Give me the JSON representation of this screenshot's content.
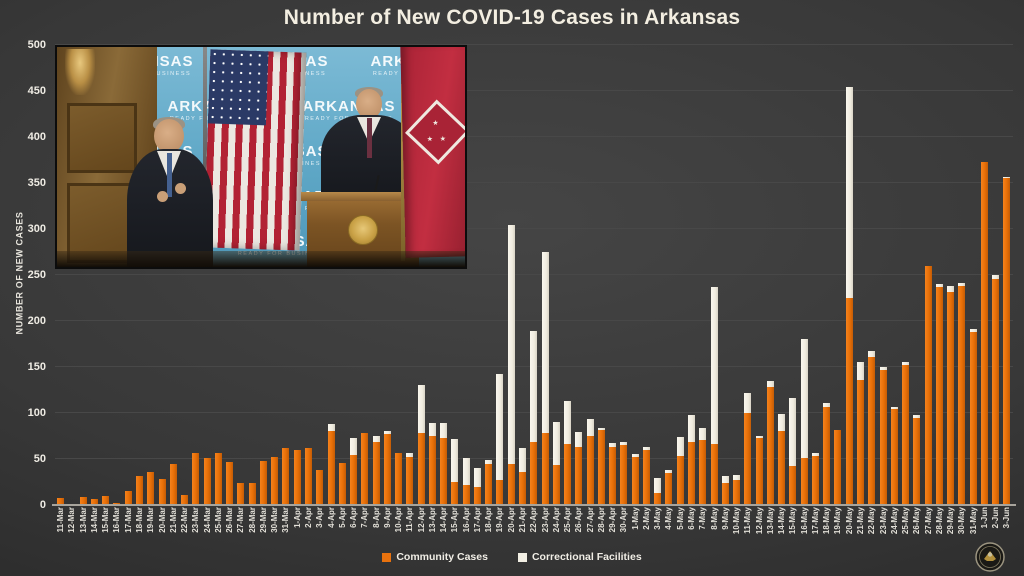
{
  "title": "Number of New COVID-19 Cases in Arkansas",
  "y_axis": {
    "title": "NUMBER OF NEW CASES",
    "ticks": [
      0,
      50,
      100,
      150,
      200,
      250,
      300,
      350,
      400,
      450,
      500
    ]
  },
  "legend": {
    "items": [
      {
        "label": "Community Cases",
        "color": "#E8720E"
      },
      {
        "label": "Correctional Facilities",
        "color": "#F2EFE4"
      }
    ]
  },
  "video_overlay": {
    "banner_title": "ARKANSAS",
    "banner_subtitle": "READY FOR BUSINESS"
  },
  "chart_data": {
    "type": "bar",
    "stacked": true,
    "title": "Number of New COVID-19 Cases in Arkansas",
    "xlabel": "",
    "ylabel": "NUMBER OF NEW CASES",
    "ylim": [
      0,
      500
    ],
    "grid": true,
    "legend_position": "bottom",
    "categories": [
      "11-Mar",
      "12-Mar",
      "13-Mar",
      "14-Mar",
      "15-Mar",
      "16-Mar",
      "17-Mar",
      "18-Mar",
      "19-Mar",
      "20-Mar",
      "21-Mar",
      "22-Mar",
      "23-Mar",
      "24-Mar",
      "25-Mar",
      "26-Mar",
      "27-Mar",
      "28-Mar",
      "29-Mar",
      "30-Mar",
      "31-Mar",
      "1-Apr",
      "2-Apr",
      "3-Apr",
      "4-Apr",
      "5-Apr",
      "6-Apr",
      "7-Apr",
      "8-Apr",
      "9-Apr",
      "10-Apr",
      "11-Apr",
      "12-Apr",
      "13-Apr",
      "14-Apr",
      "15-Apr",
      "16-Apr",
      "17-Apr",
      "18-Apr",
      "19-Apr",
      "20-Apr",
      "21-Apr",
      "22-Apr",
      "23-Apr",
      "24-Apr",
      "25-Apr",
      "26-Apr",
      "27-Apr",
      "28-Apr",
      "29-Apr",
      "30-Apr",
      "1-May",
      "2-May",
      "3-May",
      "4-May",
      "5-May",
      "6-May",
      "7-May",
      "8-May",
      "9-May",
      "10-May",
      "11-May",
      "12-May",
      "13-May",
      "14-May",
      "15-May",
      "16-May",
      "17-May",
      "18-May",
      "19-May",
      "20-May",
      "21-May",
      "22-May",
      "23-May",
      "24-May",
      "25-May",
      "26-May",
      "27-May",
      "28-May",
      "29-May",
      "30-May",
      "31-May",
      "1-Jun",
      "2-Jun",
      "3-Jun"
    ],
    "series": [
      {
        "name": "Community Cases",
        "color": "#E8720E",
        "values": [
          8,
          1,
          9,
          7,
          10,
          2,
          15,
          31,
          36,
          28,
          45,
          11,
          57,
          51,
          56,
          47,
          24,
          24,
          48,
          52,
          62,
          60,
          62,
          38,
          80,
          46,
          54,
          78,
          69,
          77,
          57,
          52,
          78,
          75,
          73,
          25,
          22,
          20,
          45,
          27,
          45,
          36,
          68,
          78,
          43,
          66,
          63,
          75,
          82,
          63,
          65,
          52,
          60,
          13,
          35,
          53,
          68,
          71,
          66,
          24,
          27,
          100,
          73,
          128,
          80,
          42,
          51,
          53,
          107,
          82,
          225,
          136,
          161,
          147,
          104,
          152,
          95,
          260,
          237,
          232,
          238,
          188,
          373,
          246,
          355
        ]
      },
      {
        "name": "Correctional Facilities",
        "color": "#F2EFE4",
        "values": [
          0,
          0,
          0,
          0,
          0,
          0,
          0,
          0,
          0,
          0,
          0,
          0,
          0,
          0,
          0,
          0,
          0,
          0,
          0,
          0,
          0,
          0,
          0,
          0,
          8,
          0,
          19,
          0,
          6,
          3,
          0,
          5,
          52,
          14,
          16,
          47,
          29,
          20,
          4,
          115,
          259,
          26,
          121,
          197,
          47,
          47,
          16,
          19,
          2,
          4,
          3,
          3,
          3,
          16,
          3,
          21,
          30,
          13,
          171,
          7,
          6,
          22,
          2,
          7,
          19,
          74,
          130,
          4,
          4,
          0,
          229,
          20,
          6,
          3,
          3,
          3,
          3,
          0,
          3,
          6,
          3,
          3,
          0,
          4,
          2
        ]
      }
    ]
  }
}
